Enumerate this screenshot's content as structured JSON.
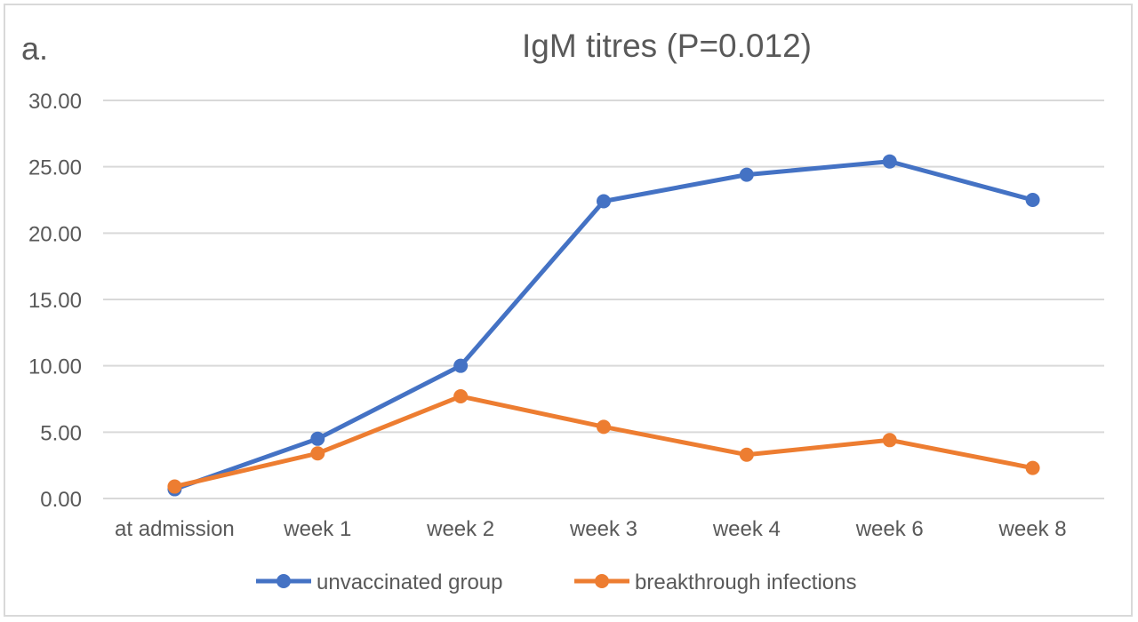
{
  "panel_label": "a.",
  "chart_data": {
    "type": "line",
    "title": "IgM titres (P=0.012)",
    "xlabel": "",
    "ylabel": "",
    "categories": [
      "at admission",
      "week 1",
      "week 2",
      "week 3",
      "week 4",
      "week 6",
      "week 8"
    ],
    "y_ticks": [
      "0.00",
      "5.00",
      "10.00",
      "15.00",
      "20.00",
      "25.00",
      "30.00"
    ],
    "ylim": [
      0,
      30
    ],
    "grid": true,
    "legend_position": "bottom",
    "series": [
      {
        "name": "unvaccinated group",
        "color": "#4472C4",
        "values": [
          0.7,
          4.5,
          10.0,
          22.4,
          24.4,
          25.4,
          22.5
        ]
      },
      {
        "name": "breakthrough infections",
        "color": "#ED7D31",
        "values": [
          0.9,
          3.4,
          7.7,
          5.4,
          3.3,
          4.4,
          2.3
        ]
      }
    ]
  }
}
